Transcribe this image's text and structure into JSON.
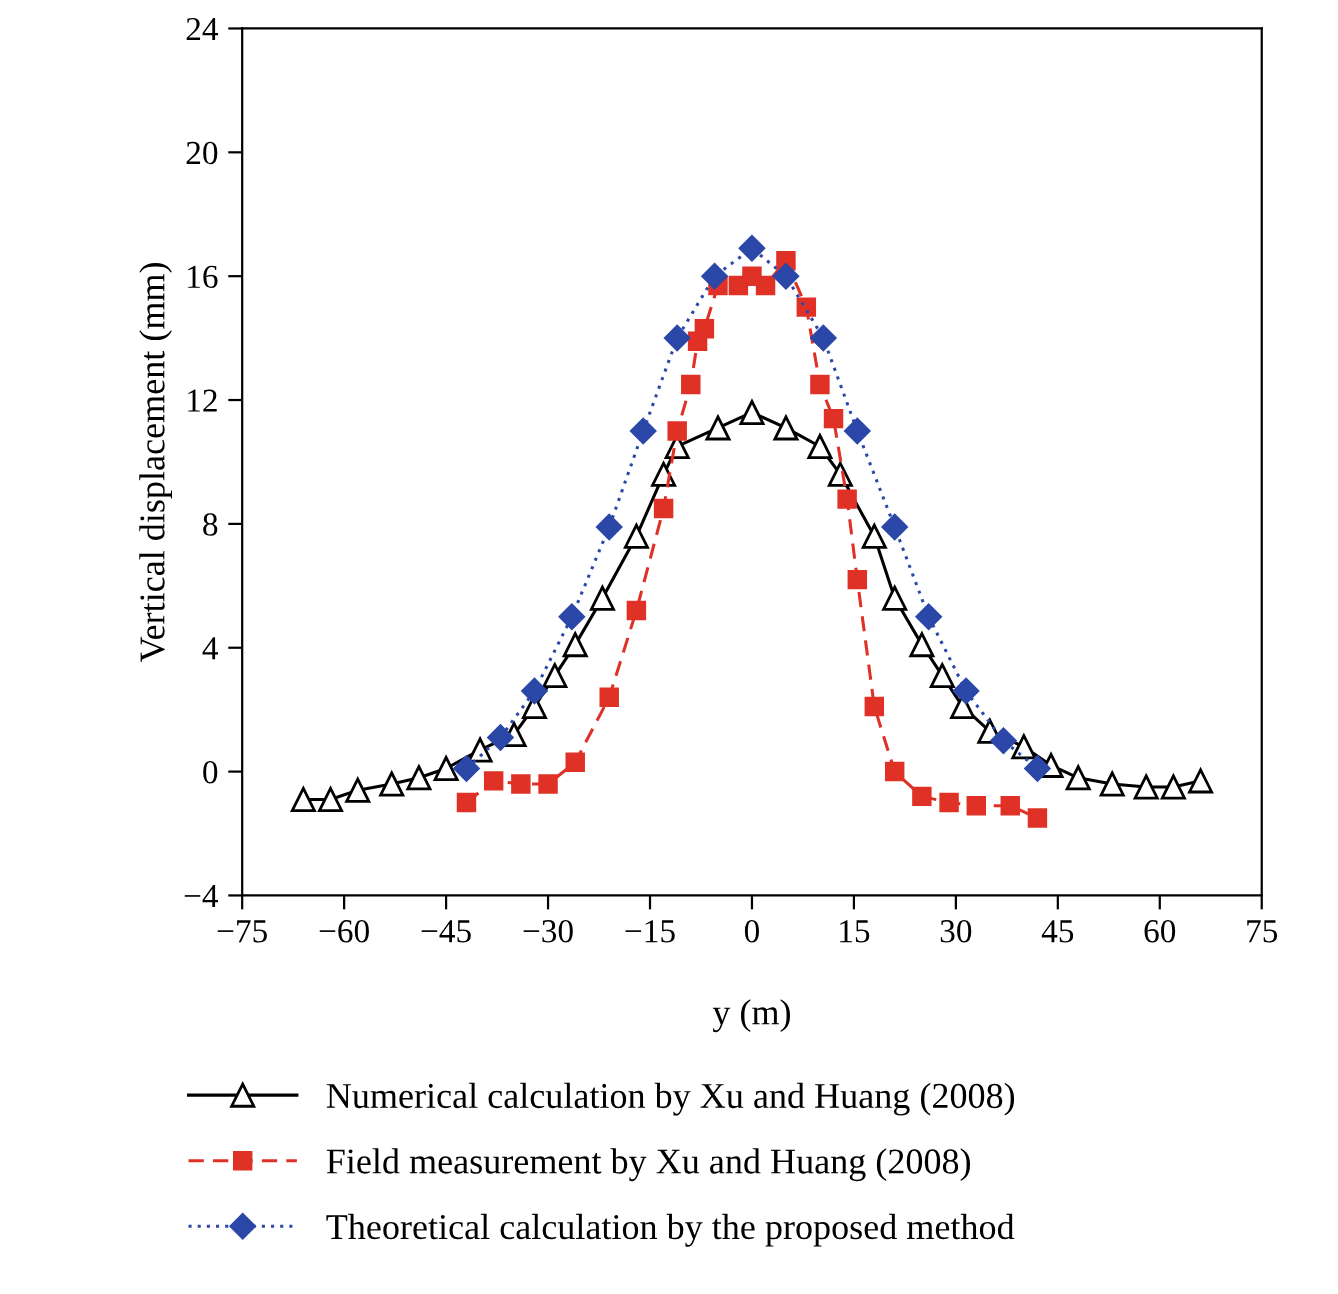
{
  "chart_data": {
    "type": "line",
    "xlabel": "y (m)",
    "ylabel": "Vertical displacement (mm)",
    "xlim": [
      -75,
      75
    ],
    "xticks": [
      -75,
      -60,
      -45,
      -30,
      -15,
      0,
      15,
      30,
      45,
      60,
      75
    ],
    "ylim": [
      -4,
      24
    ],
    "yticks": [
      -4,
      0,
      4,
      8,
      12,
      16,
      20,
      24
    ],
    "grid": false,
    "legend": "bottom",
    "series": [
      {
        "name": "Numerical calculation by Xu and Huang (2008)",
        "color": "#000000",
        "marker": "triangle",
        "line_style": "solid",
        "x": [
          -66,
          -62,
          -58,
          -53,
          -49,
          -45,
          -40,
          -35,
          -32,
          -29,
          -26,
          -22,
          -17,
          -13,
          -11,
          -5,
          0,
          5,
          10,
          13,
          18,
          21,
          25,
          28,
          31,
          35,
          40,
          44,
          48,
          53,
          58,
          62,
          66
        ],
        "values": [
          -0.9,
          -0.9,
          -0.6,
          -0.4,
          -0.2,
          0.1,
          0.7,
          1.2,
          2.1,
          3.1,
          4.1,
          5.6,
          7.6,
          9.6,
          10.5,
          11.1,
          11.6,
          11.1,
          10.5,
          9.6,
          7.6,
          5.6,
          4.1,
          3.1,
          2.1,
          1.3,
          0.8,
          0.2,
          -0.2,
          -0.4,
          -0.5,
          -0.5,
          -0.3
        ]
      },
      {
        "name": "Field measurement by Xu and Huang (2008)",
        "color": "#e03127",
        "marker": "square",
        "line_style": "dashed",
        "x": [
          -42,
          -38,
          -34,
          -30,
          -26,
          -21,
          -17,
          -13,
          -11,
          -9,
          -8,
          -7,
          -5,
          -2,
          0,
          2,
          5,
          8,
          10,
          12,
          14,
          15.5,
          18,
          21,
          25,
          29,
          33,
          38,
          42
        ],
        "values": [
          -1.0,
          -0.3,
          -0.4,
          -0.4,
          0.3,
          2.4,
          5.2,
          8.5,
          11.0,
          12.5,
          13.9,
          14.3,
          15.7,
          15.7,
          16.0,
          15.7,
          16.5,
          15.0,
          12.5,
          11.4,
          8.8,
          6.2,
          2.1,
          0.0,
          -0.8,
          -1.0,
          -1.1,
          -1.1,
          -1.5
        ]
      },
      {
        "name": "Theoretical calculation by the proposed method",
        "color": "#2b47a8",
        "marker": "diamond",
        "line_style": "dotted",
        "x": [
          -42,
          -37,
          -32,
          -26.5,
          -21,
          -16,
          -11,
          -5.5,
          0,
          5,
          10.5,
          15.5,
          21,
          26,
          31.5,
          37,
          42
        ],
        "values": [
          0.1,
          1.1,
          2.6,
          5.0,
          7.9,
          11.0,
          14.0,
          16.0,
          16.9,
          16.0,
          14.0,
          11.0,
          7.9,
          5.0,
          2.6,
          1.0,
          0.1
        ]
      }
    ]
  }
}
